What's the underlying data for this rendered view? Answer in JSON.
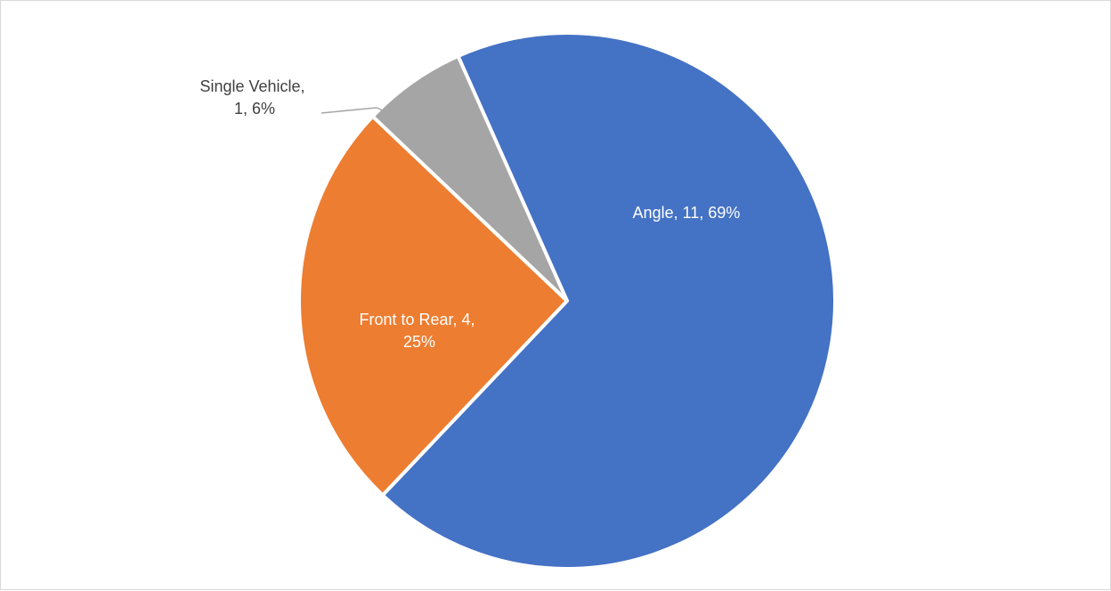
{
  "chart_data": {
    "type": "pie",
    "title": "",
    "slices": [
      {
        "category": "Angle",
        "value": 11,
        "percent": "69%",
        "color": "#4472C4",
        "label": "Angle, 11, 69%"
      },
      {
        "category": "Front to Rear",
        "value": 4,
        "percent": "25%",
        "color": "#ED7D31",
        "label_lines": [
          "Front to Rear, 4,",
          "25%"
        ]
      },
      {
        "category": "Single Vehicle",
        "value": 1,
        "percent": "6%",
        "color": "#A5A5A5",
        "label_lines": [
          "Single Vehicle,",
          "1, 6%"
        ]
      }
    ],
    "legend": "none",
    "label_colors": {
      "inside": "#ffffff",
      "outside": "#404040"
    }
  }
}
